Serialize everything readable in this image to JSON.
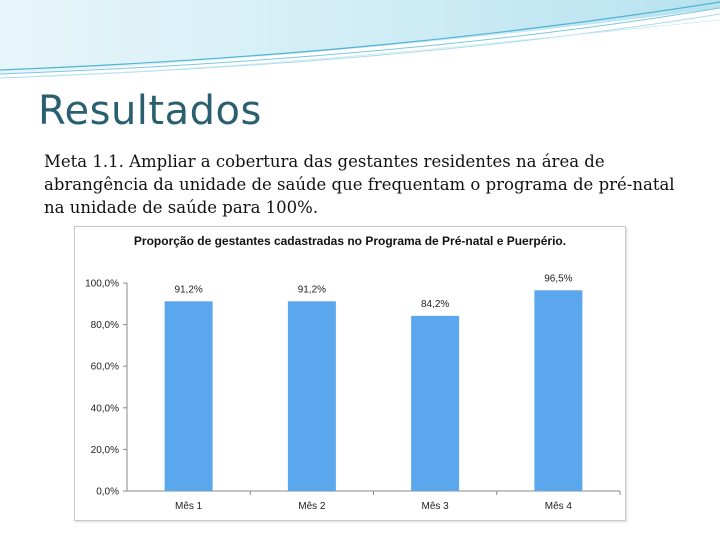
{
  "slide": {
    "title": "Resultados",
    "body": "Meta 1.1. Ampliar a cobertura das gestantes residentes na área de abrangência da unidade de saúde que frequentam o programa de pré-natal na unidade de saúde para 100%."
  },
  "colors": {
    "bar": "#5aa7ee",
    "title_text": "#2a5f6f",
    "wave": "#4fb3d3"
  },
  "chart_data": {
    "type": "bar",
    "title": "Proporção de gestantes cadastradas no Programa de Pré-natal e Puerpério.",
    "categories": [
      "Mês 1",
      "Mês 2",
      "Mês 3",
      "Mês 4"
    ],
    "values": [
      91.2,
      91.2,
      84.2,
      96.5
    ],
    "data_labels": [
      "91,2%",
      "91,2%",
      "84,2%",
      "96,5%"
    ],
    "y_ticks": [
      "0,0%",
      "20,0%",
      "40,0%",
      "60,0%",
      "80,0%",
      "100,0%"
    ],
    "ylim": [
      0,
      100
    ],
    "grid": false,
    "legend": "none"
  }
}
